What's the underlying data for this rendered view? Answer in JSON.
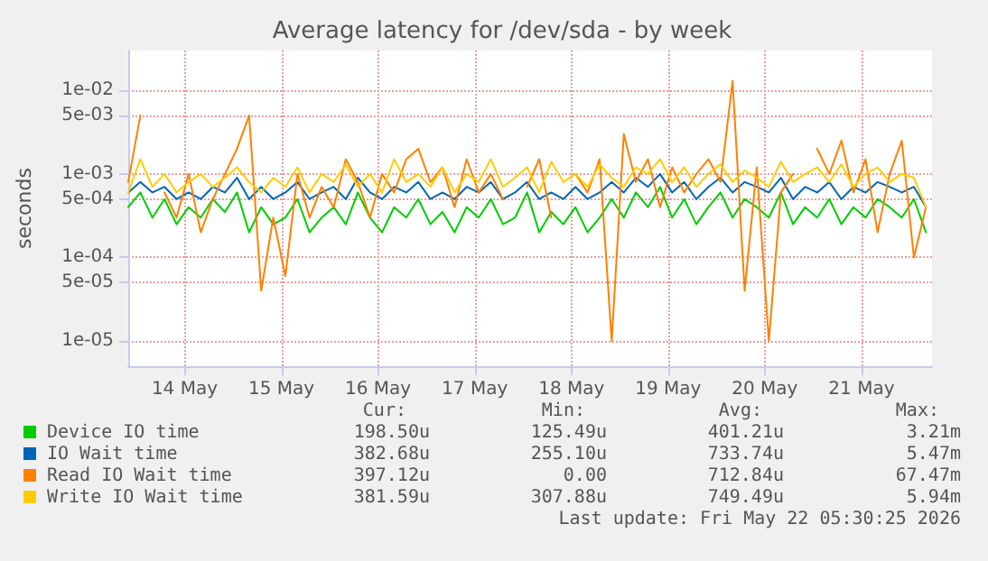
{
  "chart_data": {
    "type": "line",
    "title": "Average latency for /dev/sda - by week",
    "ylabel": "seconds",
    "log": "y",
    "grid": true,
    "legend": "bottom",
    "marker": "none",
    "line_style": "solid",
    "xlim": [
      "2026-05-13T22:00",
      "2026-05-22T05:30"
    ],
    "xticks": [
      {
        "value": "2026-05-14T12:00",
        "label": "14 May"
      },
      {
        "value": "2026-05-15T12:00",
        "label": "15 May"
      },
      {
        "value": "2026-05-16T12:00",
        "label": "16 May"
      },
      {
        "value": "2026-05-17T12:00",
        "label": "17 May"
      },
      {
        "value": "2026-05-18T12:00",
        "label": "18 May"
      },
      {
        "value": "2026-05-19T12:00",
        "label": "19 May"
      },
      {
        "value": "2026-05-20T12:00",
        "label": "20 May"
      },
      {
        "value": "2026-05-21T12:00",
        "label": "21 May"
      }
    ],
    "ylim": [
      5e-06,
      0.03
    ],
    "yticks": [
      {
        "value": 1e-05,
        "label": "1e-05"
      },
      {
        "value": 5e-05,
        "label": "5e-05"
      },
      {
        "value": 0.0001,
        "label": "1e-04"
      },
      {
        "value": 0.0005,
        "label": "5e-04"
      },
      {
        "value": 0.001,
        "label": "1e-03"
      },
      {
        "value": 0.005,
        "label": "5e-03"
      },
      {
        "value": 0.01,
        "label": "1e-02"
      }
    ],
    "x": [
      "2026-05-13T22:00",
      "2026-05-14T01:00",
      "2026-05-14T04:00",
      "2026-05-14T07:00",
      "2026-05-14T10:00",
      "2026-05-14T13:00",
      "2026-05-14T16:00",
      "2026-05-14T19:00",
      "2026-05-14T22:00",
      "2026-05-15T01:00",
      "2026-05-15T04:00",
      "2026-05-15T07:00",
      "2026-05-15T10:00",
      "2026-05-15T13:00",
      "2026-05-15T16:00",
      "2026-05-15T19:00",
      "2026-05-15T22:00",
      "2026-05-16T01:00",
      "2026-05-16T04:00",
      "2026-05-16T07:00",
      "2026-05-16T10:00",
      "2026-05-16T13:00",
      "2026-05-16T16:00",
      "2026-05-16T19:00",
      "2026-05-16T22:00",
      "2026-05-17T01:00",
      "2026-05-17T04:00",
      "2026-05-17T07:00",
      "2026-05-17T10:00",
      "2026-05-17T13:00",
      "2026-05-17T16:00",
      "2026-05-17T19:00",
      "2026-05-17T22:00",
      "2026-05-18T01:00",
      "2026-05-18T04:00",
      "2026-05-18T07:00",
      "2026-05-18T10:00",
      "2026-05-18T13:00",
      "2026-05-18T16:00",
      "2026-05-18T19:00",
      "2026-05-18T22:00",
      "2026-05-19T01:00",
      "2026-05-19T04:00",
      "2026-05-19T07:00",
      "2026-05-19T10:00",
      "2026-05-19T13:00",
      "2026-05-19T16:00",
      "2026-05-19T19:00",
      "2026-05-19T22:00",
      "2026-05-20T01:00",
      "2026-05-20T04:00",
      "2026-05-20T07:00",
      "2026-05-20T10:00",
      "2026-05-20T13:00",
      "2026-05-20T16:00",
      "2026-05-20T19:00",
      "2026-05-20T22:00",
      "2026-05-21T01:00",
      "2026-05-21T04:00",
      "2026-05-21T07:00",
      "2026-05-21T10:00",
      "2026-05-21T13:00",
      "2026-05-21T16:00",
      "2026-05-21T19:00",
      "2026-05-21T22:00",
      "2026-05-22T01:00",
      "2026-05-22T04:00"
    ],
    "series": [
      {
        "name": "Device IO time",
        "color": "#00cc00",
        "values": [
          0.0004,
          0.0006,
          0.0003,
          0.0005,
          0.00025,
          0.0004,
          0.0003,
          0.0005,
          0.00035,
          0.0006,
          0.0002,
          0.0004,
          0.00025,
          0.0003,
          0.0005,
          0.0002,
          0.0003,
          0.0004,
          0.00025,
          0.0006,
          0.0003,
          0.0002,
          0.0004,
          0.0003,
          0.0005,
          0.00025,
          0.00035,
          0.0002,
          0.0004,
          0.0003,
          0.0005,
          0.00025,
          0.0003,
          0.0006,
          0.0002,
          0.00035,
          0.00025,
          0.0004,
          0.0002,
          0.0003,
          0.0005,
          0.0003,
          0.0006,
          0.0004,
          0.0007,
          0.0003,
          0.0005,
          0.00025,
          0.0004,
          0.0006,
          0.0003,
          0.0005,
          0.0004,
          0.0003,
          0.0006,
          0.00025,
          0.0004,
          0.0003,
          0.0005,
          0.00025,
          0.0004,
          0.0003,
          0.0005,
          0.0004,
          0.0003,
          0.0005,
          0.0002
        ]
      },
      {
        "name": "IO Wait time",
        "color": "#0066b3",
        "values": [
          0.0006,
          0.0008,
          0.0006,
          0.0007,
          0.0005,
          0.0006,
          0.0005,
          0.0007,
          0.0006,
          0.0009,
          0.0005,
          0.0007,
          0.0005,
          0.0006,
          0.0008,
          0.0005,
          0.0006,
          0.0007,
          0.0005,
          0.0009,
          0.0006,
          0.0005,
          0.0007,
          0.0006,
          0.0008,
          0.0005,
          0.0006,
          0.0005,
          0.0007,
          0.0006,
          0.0008,
          0.0005,
          0.0006,
          0.0008,
          0.0005,
          0.0006,
          0.0005,
          0.0007,
          0.0005,
          0.0006,
          0.0008,
          0.0006,
          0.0009,
          0.0007,
          0.001,
          0.0006,
          0.0008,
          0.0005,
          0.0007,
          0.0009,
          0.0006,
          0.0008,
          0.0007,
          0.0006,
          0.0009,
          0.0005,
          0.0007,
          0.0006,
          0.0008,
          0.0005,
          0.0007,
          0.0006,
          0.0008,
          0.0007,
          0.0006,
          0.0007,
          0.0004
        ]
      },
      {
        "name": "Read IO Wait time",
        "color": "#ff8000",
        "values": [
          0.0008,
          0.005,
          null,
          0.0006,
          0.0003,
          0.001,
          0.0002,
          0.0005,
          0.001,
          0.002,
          0.005,
          4e-05,
          0.0003,
          6e-05,
          0.001,
          0.0003,
          0.0007,
          0.0004,
          0.0015,
          0.0008,
          0.0003,
          0.001,
          0.0006,
          0.0015,
          0.002,
          0.0008,
          0.0012,
          0.0004,
          0.0015,
          0.0006,
          0.001,
          0.0005,
          null,
          0.0007,
          0.0015,
          0.0003,
          null,
          0.001,
          0.0006,
          0.0015,
          1e-05,
          0.003,
          0.0008,
          0.0015,
          0.0004,
          0.0012,
          0.0006,
          0.001,
          0.0015,
          0.0008,
          0.013,
          4e-05,
          0.0012,
          1e-05,
          0.0006,
          0.001,
          null,
          0.002,
          0.001,
          0.0025,
          0.0006,
          0.0015,
          0.0002,
          0.001,
          0.0025,
          0.0001,
          0.0004
        ]
      },
      {
        "name": "Write IO Wait time",
        "color": "#ffcc00",
        "values": [
          0.0006,
          0.0015,
          0.0007,
          0.001,
          0.0006,
          0.0008,
          0.001,
          0.0007,
          0.0009,
          0.0012,
          0.0008,
          0.0006,
          0.0009,
          0.0007,
          0.0012,
          0.0006,
          0.001,
          0.0008,
          0.0013,
          0.0007,
          0.001,
          0.0006,
          0.0015,
          0.0008,
          0.001,
          0.0007,
          0.0012,
          0.0006,
          0.001,
          0.0008,
          0.0015,
          0.0007,
          0.0009,
          0.0012,
          0.0006,
          0.0014,
          0.0008,
          0.001,
          0.0007,
          0.0013,
          0.0009,
          0.0007,
          0.0012,
          0.001,
          0.0015,
          0.0008,
          0.0012,
          0.0007,
          0.001,
          0.0013,
          0.0008,
          0.0011,
          0.0009,
          0.0007,
          0.0014,
          0.0008,
          0.001,
          0.0012,
          0.0008,
          0.0013,
          0.0007,
          0.001,
          0.0012,
          0.0008,
          0.001,
          0.0009,
          0.0004
        ]
      }
    ],
    "annotations": [
      "Cur:",
      "Min:",
      "Avg:",
      "Max:",
      "198.50u",
      "125.49u",
      "401.21u",
      "3.21m",
      "382.68u",
      "255.10u",
      "733.74u",
      "5.47m",
      "397.12u",
      "0.00",
      "712.84u",
      "67.47m",
      "381.59u",
      "307.88u",
      "749.49u",
      "5.94m",
      "Last update: Fri May 22 05:30:25 2026"
    ]
  }
}
